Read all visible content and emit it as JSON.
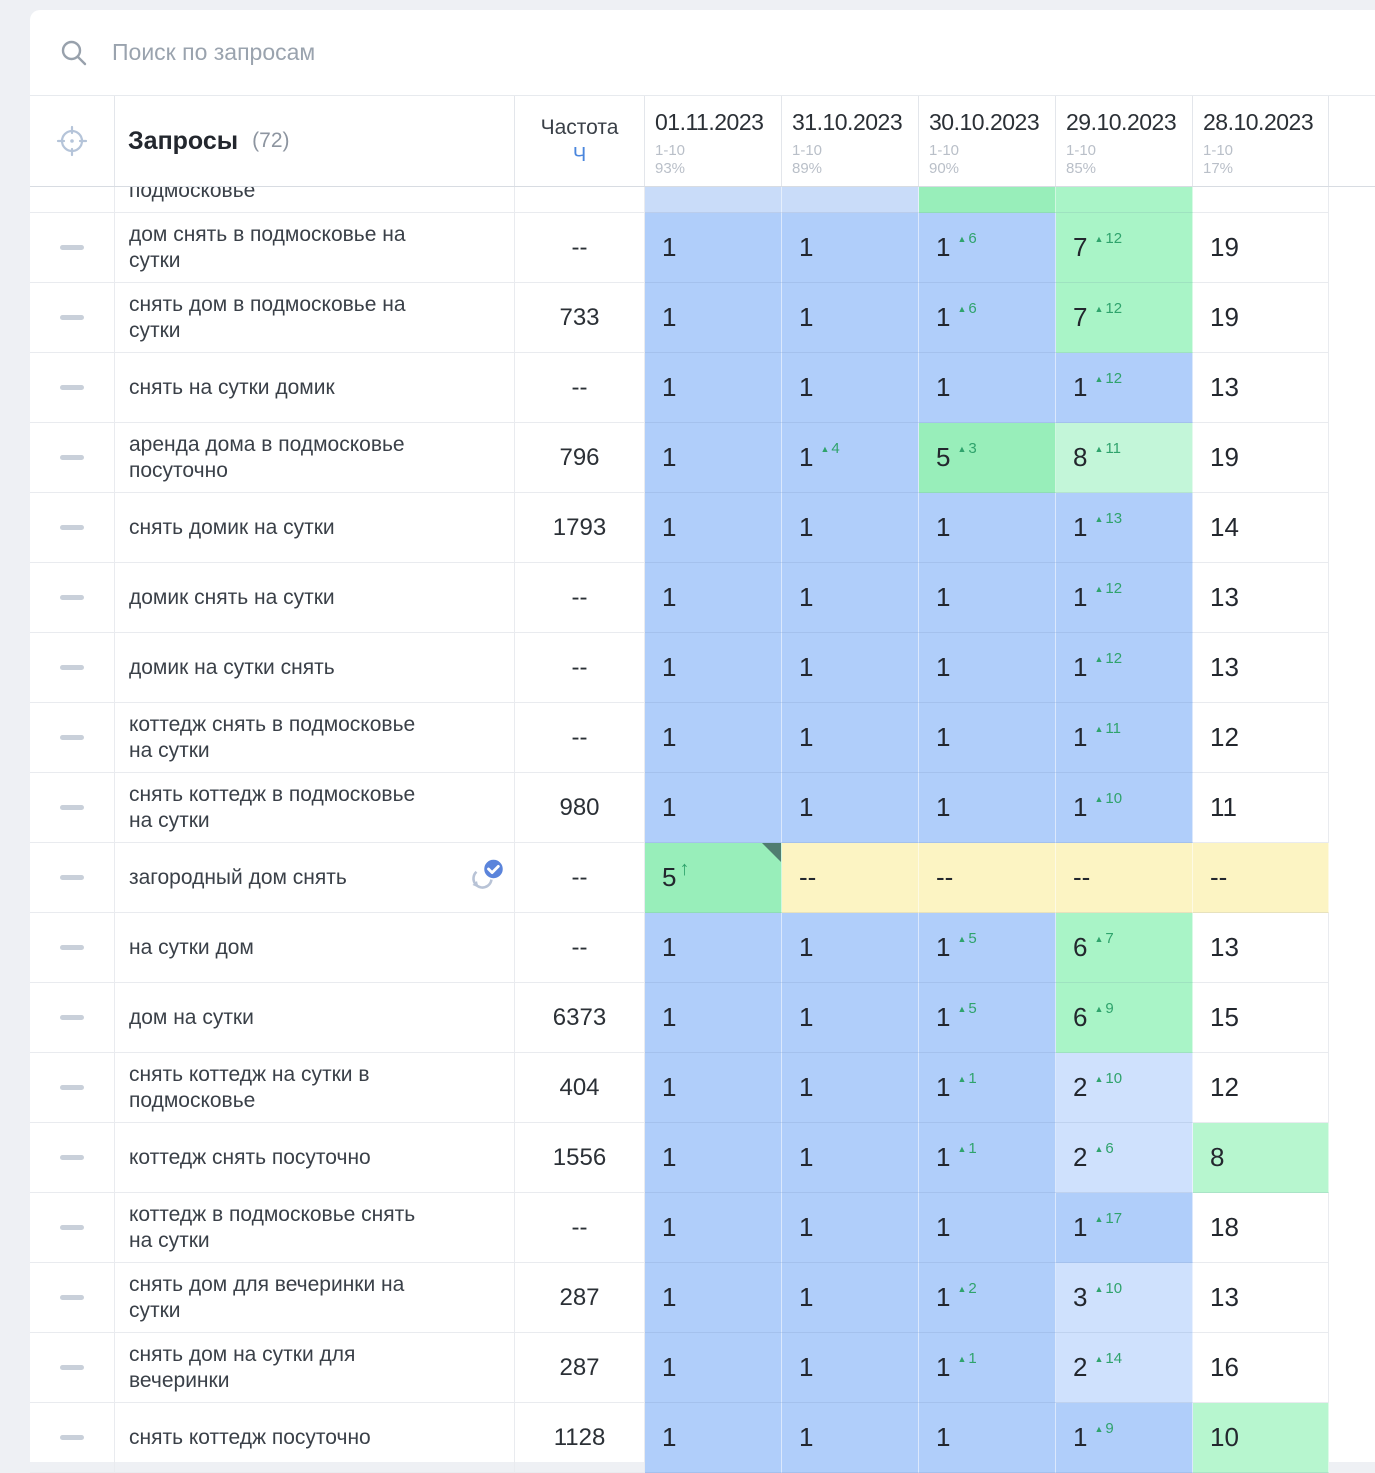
{
  "search": {
    "placeholder": "Поиск по запросам"
  },
  "table": {
    "queries_label": "Запросы",
    "queries_count": "(72)",
    "frequency_label": "Частота",
    "frequency_link": "Ч",
    "dates": [
      {
        "date": "01.11.2023",
        "range": "1-10",
        "percent": "93%"
      },
      {
        "date": "31.10.2023",
        "range": "1-10",
        "percent": "89%"
      },
      {
        "date": "30.10.2023",
        "range": "1-10",
        "percent": "90%"
      },
      {
        "date": "29.10.2023",
        "range": "1-10",
        "percent": "85%"
      },
      {
        "date": "28.10.2023",
        "range": "1-10",
        "percent": "17%"
      }
    ]
  },
  "colors": {
    "accent": "#4a86dd",
    "change_up": "#2fa36c",
    "blue": "#b0cefa",
    "blue_light": "#cfe1fd",
    "green": "#a9f4c7",
    "green_strong": "#98eeba",
    "green_light": "#c3f6d9",
    "green_pale": "#b7f6cf",
    "yellow": "#fcf4c3",
    "partial_blue": "#c9dcf9",
    "white": "#ffffff",
    "corner_flag": "#507d70"
  },
  "rows": [
    {
      "partial": true,
      "keyword": "подмосковье",
      "freq": "",
      "cells": [
        {
          "v": "",
          "bg": "pb"
        },
        {
          "v": "",
          "bg": "pb"
        },
        {
          "v": "",
          "bg": "gs"
        },
        {
          "v": "",
          "bg": "g"
        },
        {
          "v": "",
          "bg": "w"
        }
      ]
    },
    {
      "keyword": "дом снять в подмосковье на сутки",
      "freq": "--",
      "cells": [
        {
          "v": "1",
          "bg": "b"
        },
        {
          "v": "1",
          "bg": "b"
        },
        {
          "v": "1",
          "chg": "6",
          "bg": "b"
        },
        {
          "v": "7",
          "chg": "12",
          "bg": "g"
        },
        {
          "v": "19",
          "bg": "w"
        }
      ]
    },
    {
      "keyword": "снять дом в подмосковье на сутки",
      "freq": "733",
      "cells": [
        {
          "v": "1",
          "bg": "b"
        },
        {
          "v": "1",
          "bg": "b"
        },
        {
          "v": "1",
          "chg": "6",
          "bg": "b"
        },
        {
          "v": "7",
          "chg": "12",
          "bg": "g"
        },
        {
          "v": "19",
          "bg": "w"
        }
      ]
    },
    {
      "keyword": "снять на сутки домик",
      "freq": "--",
      "cells": [
        {
          "v": "1",
          "bg": "b"
        },
        {
          "v": "1",
          "bg": "b"
        },
        {
          "v": "1",
          "bg": "b"
        },
        {
          "v": "1",
          "chg": "12",
          "bg": "b"
        },
        {
          "v": "13",
          "bg": "w"
        }
      ]
    },
    {
      "keyword": "аренда дома в подмосковье посуточно",
      "freq": "796",
      "cells": [
        {
          "v": "1",
          "bg": "b"
        },
        {
          "v": "1",
          "chg": "4",
          "bg": "b"
        },
        {
          "v": "5",
          "chg": "3",
          "bg": "gs"
        },
        {
          "v": "8",
          "chg": "11",
          "bg": "gl"
        },
        {
          "v": "19",
          "bg": "w"
        }
      ]
    },
    {
      "keyword": "снять домик на сутки",
      "freq": "1793",
      "cells": [
        {
          "v": "1",
          "bg": "b"
        },
        {
          "v": "1",
          "bg": "b"
        },
        {
          "v": "1",
          "bg": "b"
        },
        {
          "v": "1",
          "chg": "13",
          "bg": "b"
        },
        {
          "v": "14",
          "bg": "w"
        }
      ]
    },
    {
      "keyword": "домик снять на сутки",
      "freq": "--",
      "cells": [
        {
          "v": "1",
          "bg": "b"
        },
        {
          "v": "1",
          "bg": "b"
        },
        {
          "v": "1",
          "bg": "b"
        },
        {
          "v": "1",
          "chg": "12",
          "bg": "b"
        },
        {
          "v": "13",
          "bg": "w"
        }
      ]
    },
    {
      "keyword": "домик на сутки снять",
      "freq": "--",
      "cells": [
        {
          "v": "1",
          "bg": "b"
        },
        {
          "v": "1",
          "bg": "b"
        },
        {
          "v": "1",
          "bg": "b"
        },
        {
          "v": "1",
          "chg": "12",
          "bg": "b"
        },
        {
          "v": "13",
          "bg": "w"
        }
      ]
    },
    {
      "keyword": "коттедж снять в подмосковье на сутки",
      "freq": "--",
      "cells": [
        {
          "v": "1",
          "bg": "b"
        },
        {
          "v": "1",
          "bg": "b"
        },
        {
          "v": "1",
          "bg": "b"
        },
        {
          "v": "1",
          "chg": "11",
          "bg": "b"
        },
        {
          "v": "12",
          "bg": "w"
        }
      ]
    },
    {
      "keyword": "снять коттедж в подмосковье на сутки",
      "freq": "980",
      "cells": [
        {
          "v": "1",
          "bg": "b"
        },
        {
          "v": "1",
          "bg": "b"
        },
        {
          "v": "1",
          "bg": "b"
        },
        {
          "v": "1",
          "chg": "10",
          "bg": "b"
        },
        {
          "v": "11",
          "bg": "w"
        }
      ]
    },
    {
      "keyword": "загородный дом снять",
      "freq": "--",
      "icon": true,
      "cells": [
        {
          "v": "5",
          "up": true,
          "corner": true,
          "bg": "gs"
        },
        {
          "v": "--",
          "bg": "y"
        },
        {
          "v": "--",
          "bg": "y"
        },
        {
          "v": "--",
          "bg": "y"
        },
        {
          "v": "--",
          "bg": "y"
        }
      ]
    },
    {
      "keyword": "на сутки дом",
      "freq": "--",
      "cells": [
        {
          "v": "1",
          "bg": "b"
        },
        {
          "v": "1",
          "bg": "b"
        },
        {
          "v": "1",
          "chg": "5",
          "bg": "b"
        },
        {
          "v": "6",
          "chg": "7",
          "bg": "g"
        },
        {
          "v": "13",
          "bg": "w"
        }
      ]
    },
    {
      "keyword": "дом на сутки",
      "freq": "6373",
      "cells": [
        {
          "v": "1",
          "bg": "b"
        },
        {
          "v": "1",
          "bg": "b"
        },
        {
          "v": "1",
          "chg": "5",
          "bg": "b"
        },
        {
          "v": "6",
          "chg": "9",
          "bg": "g"
        },
        {
          "v": "15",
          "bg": "w"
        }
      ]
    },
    {
      "keyword": "снять коттедж на сутки в подмосковье",
      "freq": "404",
      "cells": [
        {
          "v": "1",
          "bg": "b"
        },
        {
          "v": "1",
          "bg": "b"
        },
        {
          "v": "1",
          "chg": "1",
          "bg": "b"
        },
        {
          "v": "2",
          "chg": "10",
          "bg": "bl"
        },
        {
          "v": "12",
          "bg": "w"
        }
      ]
    },
    {
      "keyword": "коттедж снять посуточно",
      "freq": "1556",
      "cells": [
        {
          "v": "1",
          "bg": "b"
        },
        {
          "v": "1",
          "bg": "b"
        },
        {
          "v": "1",
          "chg": "1",
          "bg": "b"
        },
        {
          "v": "2",
          "chg": "6",
          "bg": "bl"
        },
        {
          "v": "8",
          "bg": "lg"
        }
      ]
    },
    {
      "keyword": "коттедж в подмосковье снять на сутки",
      "freq": "--",
      "cells": [
        {
          "v": "1",
          "bg": "b"
        },
        {
          "v": "1",
          "bg": "b"
        },
        {
          "v": "1",
          "bg": "b"
        },
        {
          "v": "1",
          "chg": "17",
          "bg": "b"
        },
        {
          "v": "18",
          "bg": "w"
        }
      ]
    },
    {
      "keyword": "снять дом для вечеринки на сутки",
      "freq": "287",
      "cells": [
        {
          "v": "1",
          "bg": "b"
        },
        {
          "v": "1",
          "bg": "b"
        },
        {
          "v": "1",
          "chg": "2",
          "bg": "b"
        },
        {
          "v": "3",
          "chg": "10",
          "bg": "bl"
        },
        {
          "v": "13",
          "bg": "w"
        }
      ]
    },
    {
      "keyword": "снять дом на сутки для вечеринки",
      "freq": "287",
      "cells": [
        {
          "v": "1",
          "bg": "b"
        },
        {
          "v": "1",
          "bg": "b"
        },
        {
          "v": "1",
          "chg": "1",
          "bg": "b"
        },
        {
          "v": "2",
          "chg": "14",
          "bg": "bl"
        },
        {
          "v": "16",
          "bg": "w"
        }
      ]
    },
    {
      "keyword": "снять коттедж посуточно",
      "freq": "1128",
      "cells": [
        {
          "v": "1",
          "bg": "b"
        },
        {
          "v": "1",
          "bg": "b"
        },
        {
          "v": "1",
          "bg": "b"
        },
        {
          "v": "1",
          "chg": "9",
          "bg": "b"
        },
        {
          "v": "10",
          "bg": "lg"
        }
      ]
    }
  ]
}
